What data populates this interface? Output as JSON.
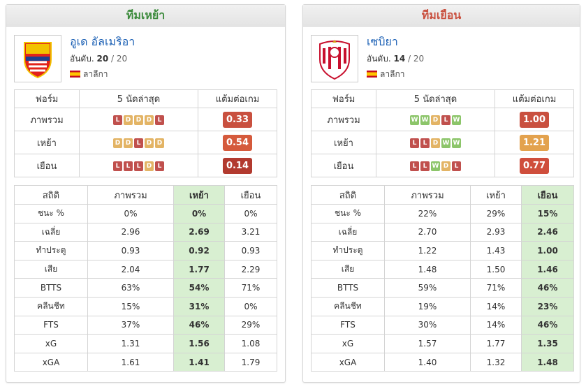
{
  "form_colors": {
    "W": "#8cc56a",
    "D": "#e3b465",
    "L": "#c0504d"
  },
  "panels": [
    {
      "title": "ทีมเหย้า",
      "title_color": "#3d8b3d",
      "team": "อูเด อัลเมริอา",
      "rank_label": "อันดับ.",
      "rank": "20",
      "rank_total": "/ 20",
      "league": "ลาลีกา",
      "form": {
        "headers": [
          "ฟอร์ม",
          "5 นัดล่าสุด",
          "แต้มต่อเกม"
        ],
        "rows": [
          {
            "label": "ภาพรวม",
            "results": [
              "L",
              "D",
              "D",
              "D",
              "L"
            ],
            "ppg": "0.33",
            "ppg_color": "#c9503f"
          },
          {
            "label": "เหย้า",
            "results": [
              "D",
              "D",
              "L",
              "D",
              "D"
            ],
            "ppg": "0.54",
            "ppg_color": "#d55a3c"
          },
          {
            "label": "เยือน",
            "results": [
              "L",
              "L",
              "L",
              "D",
              "L"
            ],
            "ppg": "0.14",
            "ppg_color": "#b23a2f"
          }
        ]
      },
      "stats": {
        "highlight_column": 2,
        "headers": [
          "สถิติ",
          "ภาพรวม",
          "เหย้า",
          "เยือน"
        ],
        "rows": [
          [
            "ชนะ %",
            "0%",
            "0%",
            "0%"
          ],
          [
            "เฉลี่ย",
            "2.96",
            "2.69",
            "3.21"
          ],
          [
            "ทำประตู",
            "0.93",
            "0.92",
            "0.93"
          ],
          [
            "เสีย",
            "2.04",
            "1.77",
            "2.29"
          ],
          [
            "BTTS",
            "63%",
            "54%",
            "71%"
          ],
          [
            "คลีนชีท",
            "15%",
            "31%",
            "0%"
          ],
          [
            "FTS",
            "37%",
            "46%",
            "29%"
          ],
          [
            "xG",
            "1.31",
            "1.56",
            "1.08"
          ],
          [
            "xGA",
            "1.61",
            "1.41",
            "1.79"
          ]
        ]
      }
    },
    {
      "title": "ทีมเยือน",
      "title_color": "#c9503f",
      "team": "เซบิยา",
      "rank_label": "อันดับ.",
      "rank": "14",
      "rank_total": "/ 20",
      "league": "ลาลีกา",
      "form": {
        "headers": [
          "ฟอร์ม",
          "5 นัดล่าสุด",
          "แต้มต่อเกม"
        ],
        "rows": [
          {
            "label": "ภาพรวม",
            "results": [
              "W",
              "W",
              "D",
              "L",
              "W"
            ],
            "ppg": "1.00",
            "ppg_color": "#c9503f"
          },
          {
            "label": "เหย้า",
            "results": [
              "L",
              "L",
              "D",
              "W",
              "W"
            ],
            "ppg": "1.21",
            "ppg_color": "#e3a24e"
          },
          {
            "label": "เยือน",
            "results": [
              "L",
              "L",
              "W",
              "D",
              "L"
            ],
            "ppg": "0.77",
            "ppg_color": "#cf4e3c"
          }
        ]
      },
      "stats": {
        "highlight_column": 3,
        "headers": [
          "สถิติ",
          "ภาพรวม",
          "เหย้า",
          "เยือน"
        ],
        "rows": [
          [
            "ชนะ %",
            "22%",
            "29%",
            "15%"
          ],
          [
            "เฉลี่ย",
            "2.70",
            "2.93",
            "2.46"
          ],
          [
            "ทำประตู",
            "1.22",
            "1.43",
            "1.00"
          ],
          [
            "เสีย",
            "1.48",
            "1.50",
            "1.46"
          ],
          [
            "BTTS",
            "59%",
            "71%",
            "46%"
          ],
          [
            "คลีนชีท",
            "19%",
            "14%",
            "23%"
          ],
          [
            "FTS",
            "30%",
            "14%",
            "46%"
          ],
          [
            "xG",
            "1.57",
            "1.77",
            "1.35"
          ],
          [
            "xGA",
            "1.40",
            "1.32",
            "1.48"
          ]
        ]
      }
    }
  ]
}
